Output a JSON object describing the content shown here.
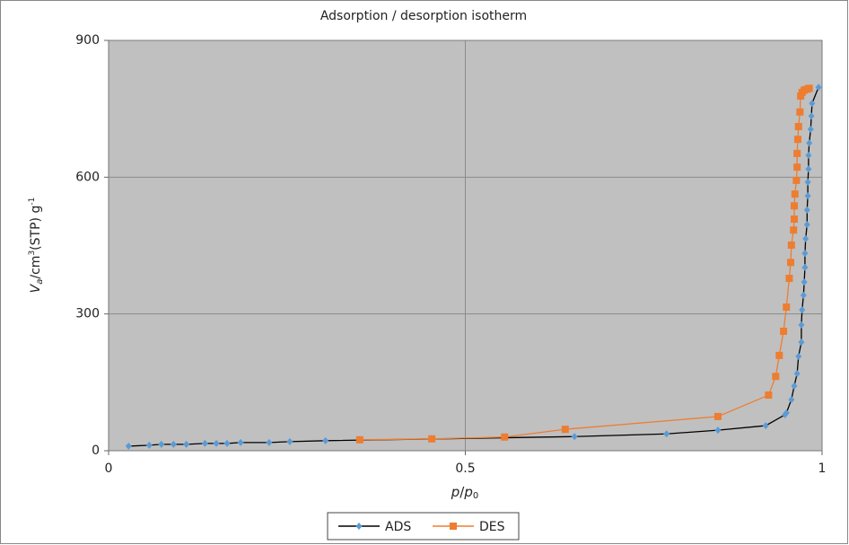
{
  "chart_data": {
    "type": "line",
    "title": "Adsorption / desorption isotherm",
    "xlabel": [
      "p",
      "/",
      "p",
      "0"
    ],
    "ylabel": [
      "V",
      "a",
      "/cm",
      "3",
      "(STP) g",
      "-1"
    ],
    "xlim": [
      0,
      1
    ],
    "xticks": [
      0,
      0.5,
      1
    ],
    "ylim": [
      0,
      900
    ],
    "yticks": [
      0,
      300,
      600,
      900
    ],
    "grid": true,
    "legend": "bottom",
    "series": [
      {
        "name": "ADS",
        "color": "#5b9bd5",
        "marker": "diamond",
        "x": [
          0.028,
          0.057,
          0.074,
          0.091,
          0.109,
          0.135,
          0.151,
          0.166,
          0.185,
          0.225,
          0.254,
          0.304,
          0.653,
          0.782,
          0.854,
          0.921,
          0.948,
          0.95,
          0.957,
          0.961,
          0.965,
          0.967,
          0.971,
          0.971,
          0.972,
          0.974,
          0.975,
          0.976,
          0.976,
          0.977,
          0.979,
          0.979,
          0.98,
          0.98,
          0.981,
          0.981,
          0.982,
          0.984,
          0.985,
          0.986,
          0.995
        ],
        "values": [
          10,
          12,
          14,
          14,
          14,
          16,
          16,
          16,
          18,
          18,
          20,
          22,
          31,
          37,
          45,
          55,
          79,
          83,
          112,
          142,
          169,
          207,
          238,
          276,
          309,
          341,
          370,
          402,
          433,
          465,
          496,
          528,
          559,
          589,
          618,
          648,
          675,
          705,
          734,
          762,
          797
        ]
      },
      {
        "name": "DES",
        "color": "#ed7d31",
        "marker": "square",
        "x": [
          0.352,
          0.453,
          0.555,
          0.64,
          0.854,
          0.925,
          0.935,
          0.94,
          0.946,
          0.95,
          0.954,
          0.956,
          0.957,
          0.96,
          0.961,
          0.961,
          0.962,
          0.964,
          0.965,
          0.965,
          0.966,
          0.967,
          0.969,
          0.97,
          0.972,
          0.975,
          0.979,
          0.982
        ],
        "values": [
          24,
          26,
          30,
          47,
          75,
          122,
          163,
          209,
          262,
          315,
          378,
          413,
          451,
          484,
          508,
          537,
          563,
          593,
          622,
          652,
          683,
          711,
          743,
          778,
          786,
          791,
          793,
          795
        ]
      }
    ]
  }
}
